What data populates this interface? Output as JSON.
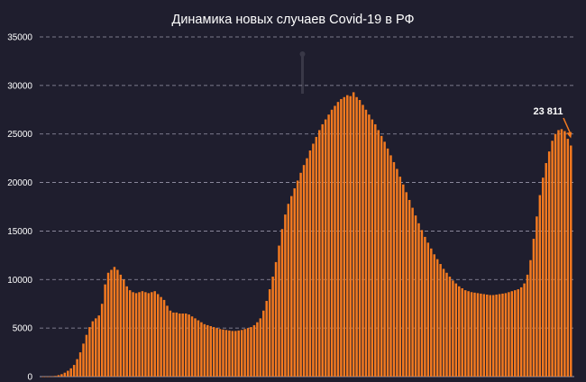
{
  "chart_data": {
    "type": "bar",
    "title": "Динамика новых случаев Covid-19 в РФ",
    "xlabel": "",
    "ylabel": "",
    "ylim": [
      0,
      35000
    ],
    "y_ticks": [
      "0",
      "5000",
      "10000",
      "15000",
      "20000",
      "25000",
      "30000",
      "35000"
    ],
    "grid": true,
    "bar_color": "#f47a20",
    "annotation": {
      "text": "23 811",
      "value": 23811,
      "color": "#f47a20"
    },
    "values": [
      3,
      5,
      12,
      30,
      70,
      150,
      250,
      400,
      600,
      850,
      1200,
      1800,
      2500,
      3400,
      4300,
      5100,
      5700,
      6000,
      6300,
      7500,
      9500,
      10700,
      11000,
      11300,
      11000,
      10500,
      10000,
      9300,
      8900,
      8700,
      8600,
      8700,
      8800,
      8700,
      8600,
      8700,
      8800,
      8500,
      8200,
      7900,
      7300,
      6800,
      6600,
      6600,
      6500,
      6500,
      6500,
      6400,
      6200,
      6000,
      5800,
      5600,
      5400,
      5300,
      5200,
      5100,
      5000,
      4900,
      4850,
      4800,
      4750,
      4700,
      4700,
      4750,
      4800,
      4900,
      5000,
      5100,
      5300,
      5600,
      6000,
      6800,
      7800,
      9000,
      10300,
      11800,
      13500,
      15200,
      16700,
      17800,
      18600,
      19400,
      20200,
      21000,
      21800,
      22500,
      23300,
      24000,
      24700,
      25400,
      26000,
      26500,
      27000,
      27500,
      27900,
      28300,
      28600,
      28800,
      29000,
      28900,
      29300,
      28800,
      28500,
      28000,
      27500,
      27000,
      26500,
      26000,
      25400,
      24800,
      24200,
      23500,
      22800,
      22100,
      21400,
      20600,
      19800,
      19000,
      18200,
      17400,
      16600,
      15800,
      15100,
      14400,
      13800,
      13200,
      12600,
      12100,
      11600,
      11100,
      10700,
      10300,
      9900,
      9600,
      9300,
      9100,
      8900,
      8800,
      8700,
      8650,
      8600,
      8550,
      8500,
      8450,
      8400,
      8400,
      8450,
      8500,
      8550,
      8600,
      8700,
      8800,
      8900,
      9000,
      9200,
      9600,
      10500,
      12000,
      14200,
      16500,
      18700,
      20500,
      22000,
      23200,
      24300,
      25000,
      25400,
      25500,
      25300,
      24500,
      23811
    ]
  }
}
